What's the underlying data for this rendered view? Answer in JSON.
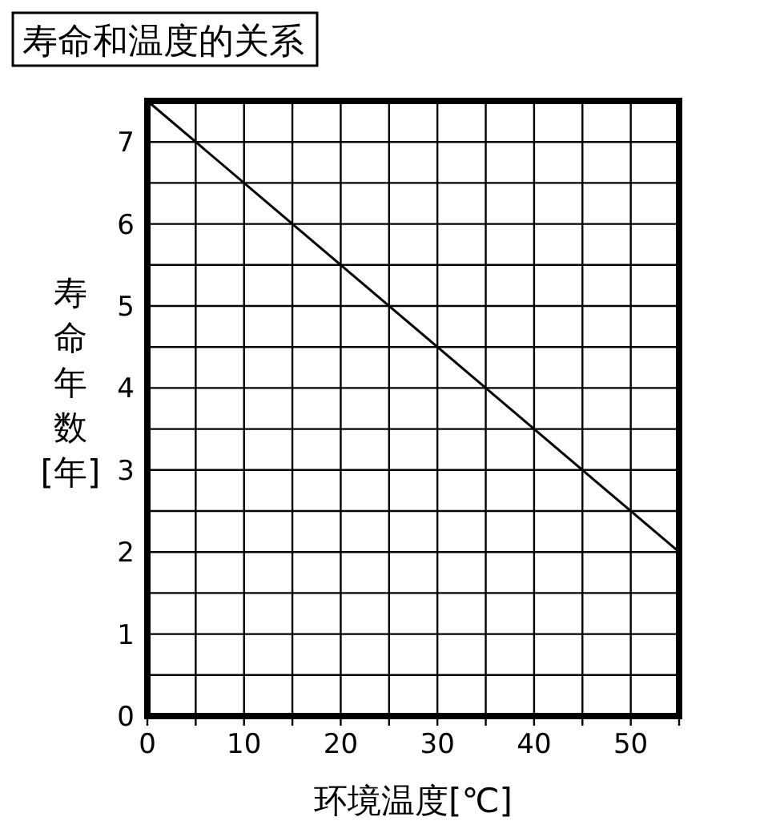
{
  "chart_data": {
    "type": "line",
    "title": "寿命和温度的关系",
    "xlabel": "环境温度[℃]",
    "ylabel": "寿命年数[年]",
    "x": [
      0,
      55
    ],
    "series": [
      {
        "color": "#000000",
        "values": [
          7.5,
          2.0
        ]
      }
    ],
    "xlim": [
      0,
      55
    ],
    "ylim": [
      0,
      7.5
    ],
    "xticks": [
      0,
      {
        "value": 5,
        "label": null
      },
      10,
      {
        "value": 15,
        "label": null
      },
      20,
      {
        "value": 25,
        "label": null
      },
      30,
      {
        "value": 35,
        "label": null
      },
      40,
      {
        "value": 45,
        "label": null
      },
      50,
      {
        "value": 55,
        "label": null
      }
    ],
    "yticks": [
      0,
      {
        "value": 0.5,
        "label": null
      },
      1,
      {
        "value": 1.5,
        "label": null
      },
      2,
      {
        "value": 2.5,
        "label": null
      },
      3,
      {
        "value": 3.5,
        "label": null
      },
      4,
      {
        "value": 4.5,
        "label": null
      },
      5,
      {
        "value": 5.5,
        "label": null
      },
      6,
      {
        "value": 6.5,
        "label": null
      },
      7,
      {
        "value": 7.5,
        "label": null
      }
    ],
    "grid": true,
    "marker": "none",
    "line_style": "solid"
  }
}
